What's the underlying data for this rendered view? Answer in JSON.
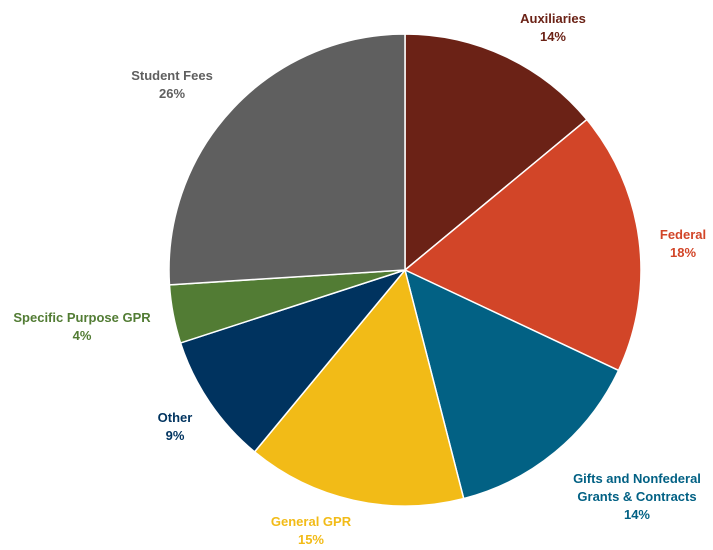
{
  "chart_data": {
    "type": "pie",
    "title": "",
    "start": "top",
    "direction": "clockwise",
    "slices": [
      {
        "label": "Auxiliaries",
        "value": 14,
        "value_label": "14%",
        "color": "#6b2216"
      },
      {
        "label": "Federal",
        "value": 18,
        "value_label": "18%",
        "color": "#d24528"
      },
      {
        "label": "Gifts and Nonfederal Grants & Contracts",
        "label_lines": [
          "Gifts and Nonfederal",
          "Grants & Contracts"
        ],
        "value": 14,
        "value_label": "14%",
        "color": "#026184"
      },
      {
        "label": "General GPR",
        "value": 15,
        "value_label": "15%",
        "color": "#f2bb17"
      },
      {
        "label": "Other",
        "value": 9,
        "value_label": "9%",
        "color": "#00335f"
      },
      {
        "label": "Specific Purpose GPR",
        "value": 4,
        "value_label": "4%",
        "color": "#527c34"
      },
      {
        "label": "Student Fees",
        "value": 26,
        "value_label": "26%",
        "color": "#5f5f5f"
      }
    ]
  }
}
